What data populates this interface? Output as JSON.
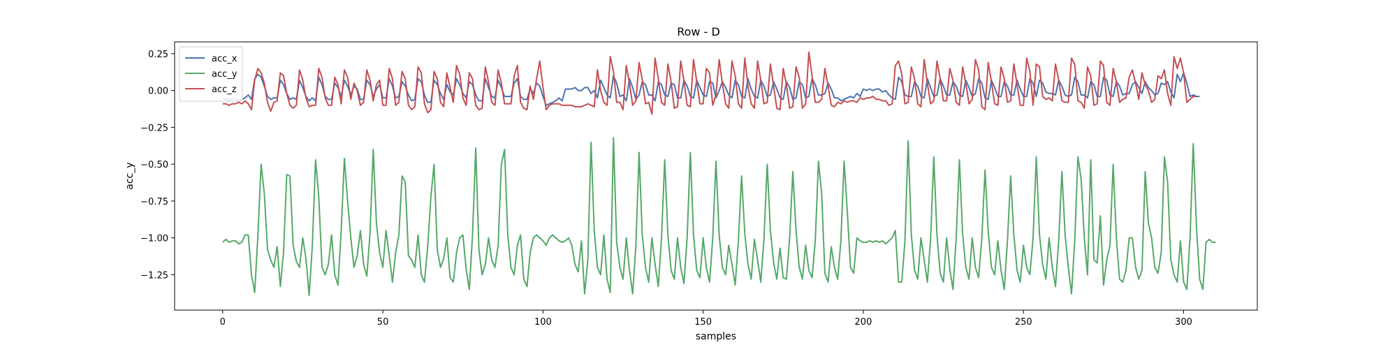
{
  "chart_data": {
    "type": "line",
    "title": "Row - D",
    "xlabel": "samples",
    "ylabel": "acc_y",
    "xlim": [
      -15,
      323
    ],
    "ylim": [
      -1.49,
      0.33
    ],
    "x_ticks": [
      0,
      50,
      100,
      150,
      200,
      250,
      300
    ],
    "x_tick_labels": [
      "0",
      "50",
      "100",
      "150",
      "200",
      "250",
      "300"
    ],
    "y_ticks": [
      0.25,
      0.0,
      -0.25,
      -0.5,
      -0.75,
      -1.0,
      -1.25
    ],
    "y_tick_labels": [
      "0.25",
      "0.00",
      "−0.25",
      "−0.50",
      "−0.75",
      "−1.00",
      "−1.25"
    ],
    "legend_position": "top-left",
    "grid": false,
    "series": [
      {
        "name": "acc_x",
        "color": "#4c72b0",
        "values": [
          -0.05,
          -0.06,
          -0.06,
          -0.06,
          -0.05,
          -0.07,
          -0.06,
          -0.05,
          -0.03,
          -0.06,
          0.08,
          0.11,
          0.09,
          0.03,
          -0.04,
          -0.06,
          -0.05,
          -0.05,
          0.07,
          0.04,
          -0.02,
          -0.06,
          -0.05,
          -0.06,
          0.07,
          0.02,
          -0.04,
          -0.07,
          -0.05,
          -0.07,
          0.09,
          0.04,
          -0.04,
          -0.06,
          -0.06,
          0.05,
          0.02,
          -0.04,
          0.07,
          0.03,
          -0.03,
          0.03,
          0.01,
          -0.06,
          -0.06,
          0.07,
          0.04,
          -0.04,
          0.01,
          0.04,
          -0.05,
          -0.05,
          0.08,
          0.03,
          -0.05,
          -0.04,
          0.06,
          0.03,
          -0.03,
          -0.07,
          -0.06,
          0.08,
          0.06,
          -0.03,
          -0.08,
          -0.08,
          0.07,
          0.04,
          -0.02,
          -0.06,
          0.04,
          -0.01,
          -0.03,
          0.08,
          0.04,
          -0.02,
          -0.05,
          0.06,
          0.04,
          -0.03,
          -0.07,
          -0.07,
          0.08,
          0.02,
          -0.04,
          -0.05,
          0.07,
          0.02,
          -0.04,
          -0.04,
          -0.04,
          0.05,
          0.08,
          -0.04,
          -0.06,
          -0.06,
          0.01,
          -0.02,
          0.05,
          0.03,
          -0.04,
          -0.1,
          -0.09,
          -0.08,
          -0.07,
          -0.05,
          -0.07,
          0.01,
          0.01,
          0.01,
          0.02,
          0.0,
          0.0,
          0.02,
          0.02,
          -0.02,
          0.0,
          -0.05,
          0.07,
          0.02,
          -0.03,
          -0.05,
          0.1,
          0.05,
          -0.04,
          -0.03,
          -0.07,
          0.08,
          0.02,
          -0.06,
          -0.03,
          0.06,
          0.04,
          -0.03,
          -0.03,
          -0.07,
          0.06,
          0.04,
          -0.03,
          -0.04,
          0.05,
          0.04,
          -0.05,
          -0.05,
          0.07,
          0.03,
          -0.04,
          -0.05,
          0.07,
          0.02,
          -0.03,
          -0.04,
          0.06,
          0.05,
          -0.05,
          0.0,
          0.06,
          0.02,
          -0.03,
          -0.05,
          0.07,
          0.04,
          -0.04,
          -0.05,
          0.08,
          0.01,
          -0.04,
          -0.05,
          0.07,
          0.03,
          -0.04,
          -0.03,
          0.06,
          0.01,
          -0.05,
          -0.06,
          0.06,
          0.02,
          -0.06,
          -0.05,
          0.06,
          0.04,
          -0.05,
          -0.04,
          0.08,
          0.04,
          -0.03,
          -0.03,
          -0.02,
          0.05,
          0.01,
          -0.05,
          -0.05,
          -0.07,
          -0.06,
          -0.05,
          -0.04,
          -0.05,
          -0.02,
          -0.04,
          0.01,
          0.0,
          0.01,
          0.0,
          0.01,
          0.01,
          -0.01,
          0.0,
          -0.03,
          -0.05,
          -0.06,
          0.09,
          0.06,
          -0.03,
          -0.04,
          -0.04,
          0.06,
          0.03,
          -0.04,
          -0.05,
          0.08,
          0.02,
          -0.04,
          -0.03,
          0.08,
          0.03,
          -0.03,
          -0.03,
          0.06,
          0.03,
          -0.03,
          -0.04,
          0.07,
          0.02,
          -0.04,
          -0.02,
          0.08,
          0.05,
          -0.05,
          -0.06,
          0.07,
          0.02,
          -0.04,
          -0.04,
          0.06,
          0.03,
          -0.03,
          -0.03,
          0.07,
          0.01,
          -0.04,
          -0.04,
          0.08,
          0.05,
          -0.04,
          0.07,
          0.05,
          -0.01,
          -0.02,
          -0.02,
          -0.03,
          0.07,
          0.03,
          -0.03,
          -0.04,
          -0.03,
          0.09,
          0.06,
          -0.03,
          -0.03,
          -0.05,
          0.06,
          0.04,
          -0.04,
          -0.04,
          0.09,
          0.07,
          -0.03,
          -0.04,
          0.06,
          0.03,
          -0.03,
          -0.02,
          -0.02,
          0.04,
          0.06,
          0.02,
          -0.02,
          0.06,
          0.02,
          0.0,
          -0.03,
          -0.02,
          0.05,
          0.04,
          0.06,
          -0.01,
          -0.05,
          0.11,
          0.06,
          0.12,
          0.05,
          -0.04,
          -0.03,
          -0.04,
          -0.04
        ]
      },
      {
        "name": "acc_y",
        "color": "#55a868",
        "values": [
          -1.03,
          -1.01,
          -1.03,
          -1.02,
          -1.02,
          -1.04,
          -1.03,
          -0.98,
          -0.98,
          -1.25,
          -1.37,
          -0.98,
          -0.5,
          -0.7,
          -1.08,
          -1.15,
          -1.2,
          -1.06,
          -1.33,
          -1.1,
          -0.57,
          -0.58,
          -1.05,
          -1.16,
          -1.2,
          -1.0,
          -1.14,
          -1.39,
          -1.05,
          -0.47,
          -0.72,
          -1.2,
          -1.25,
          -1.18,
          -0.98,
          -1.25,
          -1.32,
          -0.95,
          -0.46,
          -0.75,
          -1.0,
          -1.2,
          -1.12,
          -0.95,
          -1.18,
          -1.26,
          -0.97,
          -0.4,
          -0.9,
          -1.1,
          -1.2,
          -0.95,
          -1.12,
          -1.3,
          -1.1,
          -0.98,
          -0.58,
          -0.62,
          -1.12,
          -1.15,
          -1.2,
          -0.98,
          -1.25,
          -1.3,
          -1.06,
          -0.72,
          -0.5,
          -1.08,
          -1.2,
          -1.14,
          -1.0,
          -1.27,
          -1.3,
          -1.1,
          -1.0,
          -0.98,
          -1.21,
          -1.35,
          -0.98,
          -0.39,
          -1.08,
          -1.25,
          -1.18,
          -1.0,
          -1.15,
          -1.2,
          -1.05,
          -0.5,
          -0.4,
          -0.98,
          -1.2,
          -1.25,
          -1.05,
          -0.98,
          -1.28,
          -1.33,
          -1.1,
          -1.0,
          -0.98,
          -1.0,
          -1.02,
          -1.05,
          -1.0,
          -0.98,
          -1.0,
          -1.02,
          -1.03,
          -1.02,
          -1.0,
          -1.05,
          -1.18,
          -1.23,
          -1.02,
          -1.38,
          -1.15,
          -0.35,
          -0.95,
          -1.2,
          -1.25,
          -0.98,
          -1.28,
          -1.37,
          -0.32,
          -1.03,
          -1.2,
          -1.28,
          -1.0,
          -1.22,
          -1.38,
          -1.05,
          -0.42,
          -0.98,
          -1.2,
          -1.3,
          -1.0,
          -1.18,
          -1.33,
          -1.0,
          -0.47,
          -0.98,
          -1.22,
          -1.28,
          -1.0,
          -1.2,
          -1.31,
          -1.0,
          -0.42,
          -0.98,
          -1.22,
          -1.27,
          -1.0,
          -1.2,
          -1.3,
          -1.0,
          -0.48,
          -0.98,
          -1.2,
          -1.25,
          -1.05,
          -1.18,
          -1.32,
          -1.02,
          -0.58,
          -0.97,
          -1.18,
          -1.28,
          -1.01,
          -1.15,
          -1.3,
          -1.0,
          -0.5,
          -0.95,
          -1.17,
          -1.28,
          -1.07,
          -1.27,
          -1.28,
          -1.0,
          -0.55,
          -0.95,
          -1.2,
          -1.28,
          -1.05,
          -1.22,
          -1.27,
          -1.02,
          -0.48,
          -0.7,
          -1.24,
          -1.3,
          -1.06,
          -1.2,
          -1.28,
          -1.02,
          -0.48,
          -0.82,
          -1.2,
          -1.24,
          -1.0,
          -1.02,
          -1.03,
          -1.03,
          -1.02,
          -1.03,
          -1.02,
          -1.03,
          -1.02,
          -1.04,
          -1.02,
          -1.0,
          -0.95,
          -1.3,
          -1.3,
          -1.02,
          -0.34,
          -0.98,
          -1.22,
          -1.28,
          -1.0,
          -1.15,
          -1.3,
          -1.01,
          -0.45,
          -0.98,
          -1.24,
          -1.3,
          -1.0,
          -1.21,
          -1.35,
          -1.0,
          -0.47,
          -0.97,
          -1.2,
          -1.28,
          -1.0,
          -1.2,
          -1.27,
          -1.0,
          -0.54,
          -0.96,
          -1.2,
          -1.25,
          -1.02,
          -1.22,
          -1.35,
          -1.02,
          -0.58,
          -0.98,
          -1.22,
          -1.3,
          -1.05,
          -1.2,
          -1.25,
          -1.0,
          -0.45,
          -0.98,
          -1.18,
          -1.28,
          -1.0,
          -1.2,
          -1.33,
          -1.02,
          -0.55,
          -0.98,
          -1.2,
          -1.38,
          -1.02,
          -0.45,
          -0.6,
          -1.0,
          -1.25,
          -0.47,
          -1.15,
          -1.17,
          -0.85,
          -1.32,
          -1.15,
          -1.05,
          -0.5,
          -1.0,
          -1.28,
          -1.3,
          -1.22,
          -1.0,
          -1.0,
          -1.2,
          -1.28,
          -1.22,
          -0.55,
          -0.9,
          -1.0,
          -1.2,
          -1.24,
          -1.1,
          -0.45,
          -0.62,
          -1.15,
          -1.25,
          -1.3,
          -1.02,
          -1.3,
          -1.35,
          -1.0,
          -0.36,
          -0.92,
          -1.28,
          -1.35,
          -1.03,
          -1.01,
          -1.03,
          -1.03
        ]
      },
      {
        "name": "acc_z",
        "color": "#c44e52",
        "values": [
          -0.09,
          -0.09,
          -0.1,
          -0.09,
          -0.09,
          -0.08,
          -0.09,
          -0.07,
          -0.09,
          -0.13,
          0.07,
          0.15,
          0.12,
          0.05,
          -0.08,
          -0.14,
          -0.08,
          -0.07,
          0.12,
          0.1,
          -0.02,
          -0.1,
          -0.12,
          -0.1,
          0.14,
          0.07,
          -0.05,
          -0.11,
          -0.1,
          -0.1,
          0.15,
          0.09,
          -0.05,
          -0.1,
          -0.1,
          0.09,
          0.04,
          -0.09,
          0.14,
          0.09,
          -0.06,
          0.05,
          0.0,
          -0.1,
          -0.08,
          0.14,
          0.07,
          -0.07,
          0.04,
          0.07,
          -0.1,
          -0.1,
          0.15,
          0.08,
          -0.1,
          -0.08,
          0.13,
          0.08,
          -0.1,
          -0.13,
          -0.11,
          0.16,
          0.12,
          -0.09,
          -0.15,
          -0.13,
          0.13,
          0.08,
          -0.08,
          -0.11,
          0.12,
          0.02,
          -0.08,
          0.17,
          0.11,
          -0.05,
          -0.1,
          0.12,
          0.08,
          -0.1,
          -0.13,
          -0.12,
          0.16,
          0.06,
          -0.08,
          -0.1,
          0.14,
          0.05,
          -0.09,
          -0.09,
          -0.09,
          0.1,
          0.17,
          -0.08,
          -0.12,
          -0.13,
          0.03,
          -0.06,
          0.08,
          0.2,
          0.02,
          -0.13,
          -0.1,
          -0.09,
          -0.09,
          -0.09,
          -0.1,
          -0.1,
          -0.1,
          -0.1,
          -0.11,
          -0.11,
          -0.11,
          -0.1,
          -0.09,
          -0.1,
          -0.11,
          0.14,
          0.0,
          -0.08,
          -0.1,
          0.23,
          0.13,
          -0.08,
          -0.08,
          -0.13,
          0.17,
          0.05,
          -0.1,
          -0.07,
          0.19,
          0.07,
          -0.09,
          -0.08,
          -0.16,
          0.22,
          0.08,
          -0.08,
          -0.1,
          0.18,
          0.06,
          -0.12,
          -0.11,
          0.2,
          0.07,
          -0.1,
          -0.11,
          0.21,
          0.06,
          -0.09,
          -0.09,
          0.15,
          0.12,
          -0.1,
          -0.03,
          0.21,
          0.05,
          -0.09,
          -0.12,
          0.2,
          0.1,
          -0.09,
          -0.12,
          0.22,
          0.03,
          -0.09,
          -0.12,
          0.2,
          0.07,
          -0.09,
          -0.08,
          0.18,
          0.03,
          -0.12,
          -0.13,
          0.15,
          0.04,
          -0.12,
          -0.11,
          0.16,
          0.09,
          -0.12,
          -0.09,
          0.26,
          0.1,
          -0.08,
          -0.08,
          -0.06,
          0.15,
          0.03,
          -0.1,
          -0.11,
          -0.08,
          -0.09,
          -0.07,
          -0.08,
          -0.07,
          -0.07,
          -0.08,
          -0.05,
          -0.06,
          -0.05,
          -0.05,
          -0.04,
          -0.06,
          -0.06,
          -0.07,
          -0.07,
          -0.1,
          -0.09,
          0.17,
          0.2,
          0.11,
          -0.09,
          -0.08,
          0.16,
          0.08,
          -0.09,
          -0.11,
          0.21,
          0.05,
          -0.09,
          -0.07,
          0.2,
          0.08,
          -0.07,
          -0.07,
          0.15,
          0.07,
          -0.08,
          -0.1,
          0.16,
          0.05,
          -0.09,
          -0.06,
          0.21,
          0.14,
          -0.11,
          -0.13,
          0.19,
          0.06,
          -0.09,
          -0.1,
          0.16,
          0.08,
          -0.08,
          -0.07,
          0.18,
          0.04,
          -0.1,
          -0.1,
          0.22,
          0.13,
          -0.1,
          0.18,
          0.16,
          -0.04,
          -0.06,
          -0.05,
          -0.07,
          0.18,
          0.07,
          -0.07,
          -0.08,
          -0.08,
          0.22,
          0.18,
          -0.07,
          -0.08,
          -0.12,
          0.16,
          0.1,
          -0.1,
          -0.09,
          0.2,
          0.17,
          -0.08,
          -0.1,
          0.15,
          0.06,
          -0.08,
          -0.06,
          -0.05,
          0.09,
          0.14,
          0.05,
          -0.06,
          0.12,
          0.04,
          0.0,
          -0.08,
          -0.06,
          0.1,
          0.08,
          0.14,
          -0.02,
          -0.1,
          0.23,
          0.15,
          0.22,
          0.12,
          -0.08,
          -0.06,
          -0.04,
          -0.04
        ]
      }
    ]
  }
}
